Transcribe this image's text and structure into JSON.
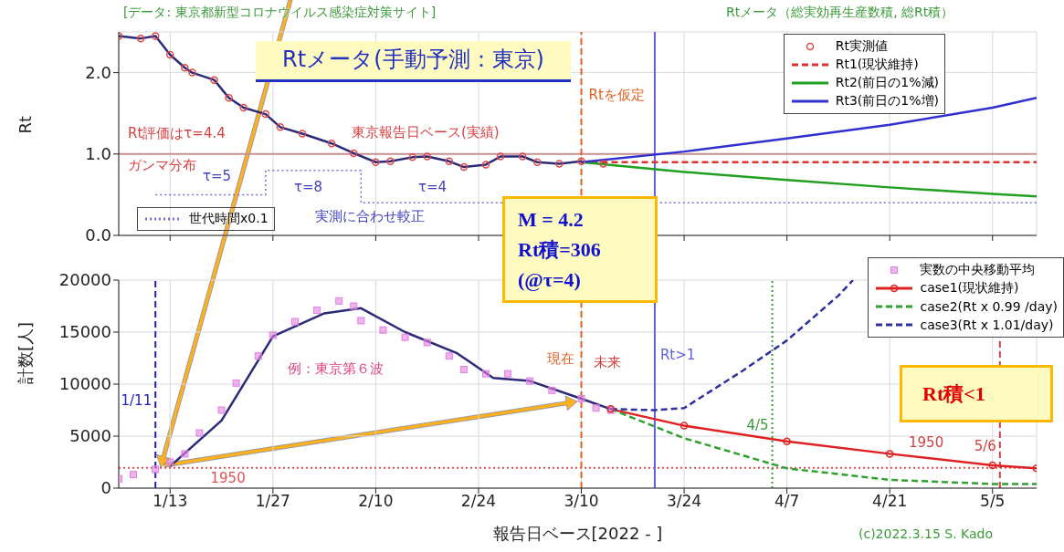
{
  "chart_data": [
    {
      "type": "line",
      "title": "Rtメータ(手動予測：東京)",
      "ylabel": "Rt",
      "xlim": [
        "2022-01-06",
        "2022-05-11"
      ],
      "xticks": [
        {
          "value": "2022-01-13",
          "label": null
        },
        {
          "value": "2022-01-27",
          "label": null
        },
        {
          "value": "2022-02-10",
          "label": null
        },
        {
          "value": "2022-02-24",
          "label": null
        },
        {
          "value": "2022-03-10",
          "label": null
        },
        {
          "value": "2022-03-24",
          "label": null
        },
        {
          "value": "2022-04-07",
          "label": null
        },
        {
          "value": "2022-04-21",
          "label": null
        },
        {
          "value": "2022-05-05",
          "label": null
        }
      ],
      "ylim": [
        0,
        2.5
      ],
      "yticks": [
        {
          "value": 0,
          "label": "0.0"
        },
        {
          "value": 1,
          "label": "1.0"
        },
        {
          "value": 2,
          "label": "2.0"
        }
      ],
      "tick_labels": "y",
      "grid": true,
      "legend": "top right",
      "annotations": [
        "[データ: 東京都新型コロナウイルス感染症対策サイト]",
        "Rtメータ（総実効再生産数積, 総Rt積）",
        "Rt評価はτ=4.4",
        "ガンマ分布",
        "東京報告日ベース(実績)",
        "τ=5",
        "τ=8",
        "τ=4",
        "実測に合わせ較正"
      ],
      "ref_lines": [
        {
          "axis": "y",
          "value": 1,
          "color": "#c89090",
          "line_style": "solid"
        },
        {
          "axis": "x",
          "value": "2022-03-10",
          "label": "Rtを仮定",
          "color": "#e06020",
          "line_style": "dashed"
        },
        {
          "axis": "x",
          "value": "2022-03-20",
          "color": "#6060d8",
          "line_style": "solid"
        }
      ],
      "series": [
        {
          "type": "line",
          "color": "#2a2a78",
          "marker": "none",
          "line_style": "solid",
          "x": [
            "2022-01-06",
            "2022-01-09",
            "2022-01-11",
            "2022-01-13",
            "2022-01-15",
            "2022-01-16",
            "2022-01-19",
            "2022-01-21",
            "2022-01-23",
            "2022-01-26",
            "2022-01-28",
            "2022-01-31",
            "2022-02-04",
            "2022-02-07",
            "2022-02-10",
            "2022-02-12",
            "2022-02-15",
            "2022-02-17",
            "2022-02-20",
            "2022-02-22",
            "2022-02-25",
            "2022-02-27",
            "2022-03-02",
            "2022-03-04",
            "2022-03-07",
            "2022-03-10"
          ],
          "values": [
            2.45,
            2.42,
            2.45,
            2.22,
            2.06,
            2.0,
            1.91,
            1.69,
            1.57,
            1.49,
            1.33,
            1.25,
            1.13,
            1.01,
            0.9,
            0.91,
            0.96,
            0.97,
            0.91,
            0.84,
            0.87,
            0.97,
            0.97,
            0.9,
            0.88,
            0.91
          ]
        },
        {
          "type": "scatter",
          "name": "Rt実測値",
          "color": "#e04848",
          "marker": "circle",
          "x": [
            "2022-01-06",
            "2022-01-09",
            "2022-01-11",
            "2022-01-13",
            "2022-01-15",
            "2022-01-16",
            "2022-01-19",
            "2022-01-21",
            "2022-01-23",
            "2022-01-26",
            "2022-01-28",
            "2022-01-31",
            "2022-02-04",
            "2022-02-07",
            "2022-02-10",
            "2022-02-12",
            "2022-02-15",
            "2022-02-17",
            "2022-02-20",
            "2022-02-22",
            "2022-02-25",
            "2022-02-27",
            "2022-03-02",
            "2022-03-04",
            "2022-03-07",
            "2022-03-10",
            "2022-03-13"
          ],
          "values": [
            2.45,
            2.42,
            2.45,
            2.22,
            2.06,
            2.0,
            1.91,
            1.69,
            1.57,
            1.49,
            1.33,
            1.25,
            1.13,
            1.01,
            0.9,
            0.91,
            0.96,
            0.97,
            0.91,
            0.84,
            0.87,
            0.97,
            0.97,
            0.9,
            0.88,
            0.91,
            0.88
          ]
        },
        {
          "type": "line",
          "name": "Rt1(現状維持)",
          "color": "#e03030",
          "marker": "none",
          "line_style": "dashed",
          "x": [
            "2022-03-10",
            "2022-05-11"
          ],
          "values": [
            0.9,
            0.9
          ]
        },
        {
          "type": "line",
          "name": "Rt2(前日の1%減)",
          "color": "#20a020",
          "marker": "none",
          "line_style": "solid",
          "x": [
            "2022-03-10",
            "2022-03-24",
            "2022-04-07",
            "2022-04-21",
            "2022-05-05",
            "2022-05-11"
          ],
          "values": [
            0.9,
            0.78,
            0.68,
            0.59,
            0.51,
            0.48
          ]
        },
        {
          "type": "line",
          "name": "Rt3(前日の1%増)",
          "color": "#3030d0",
          "marker": "none",
          "line_style": "solid",
          "x": [
            "2022-03-10",
            "2022-03-24",
            "2022-04-07",
            "2022-04-21",
            "2022-05-05",
            "2022-05-11"
          ],
          "values": [
            0.9,
            1.03,
            1.19,
            1.36,
            1.57,
            1.69
          ]
        },
        {
          "type": "step",
          "name": "世代時間x0.1",
          "color": "#7070e0",
          "marker": "none",
          "line_style": "dotted",
          "x": [
            "2022-01-11",
            "2022-01-26",
            "2022-02-08",
            "2022-05-11"
          ],
          "values": [
            0.5,
            0.8,
            0.4,
            0.4
          ]
        }
      ]
    },
    {
      "type": "line",
      "xlabel": "報告日ベース[2022 - ]",
      "ylabel": "計数[人]",
      "xlim": [
        "2022-01-06",
        "2022-05-11"
      ],
      "xticks": [
        {
          "value": "2022-01-13",
          "label": "1/13"
        },
        {
          "value": "2022-01-27",
          "label": "1/27"
        },
        {
          "value": "2022-02-10",
          "label": "2/10"
        },
        {
          "value": "2022-02-24",
          "label": "2/24"
        },
        {
          "value": "2022-03-10",
          "label": "3/10"
        },
        {
          "value": "2022-03-24",
          "label": "3/24"
        },
        {
          "value": "2022-04-07",
          "label": "4/7"
        },
        {
          "value": "2022-04-21",
          "label": "4/21"
        },
        {
          "value": "2022-05-05",
          "label": "5/5"
        }
      ],
      "ylim": [
        0,
        20000
      ],
      "yticks": [
        0,
        5000,
        10000,
        15000,
        20000
      ],
      "grid": true,
      "legend": "top right",
      "annotations": [
        "M = 4.2\nRt積=306\n(@τ=4)",
        "例：東京第６波",
        "1950",
        "未来",
        "Rt積<1",
        "(c)2022.3.15 S. Kado"
      ],
      "ref_lines": [
        {
          "axis": "y",
          "value": 1950,
          "label": "1950",
          "color": "#e05050",
          "line_style": "dotted"
        },
        {
          "axis": "x",
          "value": "2022-03-10",
          "label": "現在",
          "color": "#e06020",
          "line_style": "dashed"
        },
        {
          "axis": "x",
          "value": "2022-03-20",
          "label": "Rt>1",
          "color": "#6060d8",
          "line_style": "solid"
        },
        {
          "axis": "x",
          "value": "2022-01-11",
          "label": "1/11",
          "color": "#2020c0",
          "line_style": "dashed"
        },
        {
          "axis": "x",
          "value": "2022-04-05",
          "label": "4/5",
          "color": "#3a9a3a",
          "line_style": "dotted"
        },
        {
          "axis": "x",
          "value": "2022-05-06",
          "label": "5/6",
          "color": "#d04040",
          "line_style": "dashed"
        }
      ],
      "series": [
        {
          "type": "scatter",
          "name": "実数の中央移動平均",
          "color": "#e080e0",
          "marker": "square",
          "x": [
            "2022-01-06",
            "2022-01-08",
            "2022-01-11",
            "2022-01-13",
            "2022-01-15",
            "2022-01-17",
            "2022-01-20",
            "2022-01-22",
            "2022-01-25",
            "2022-01-27",
            "2022-01-30",
            "2022-02-02",
            "2022-02-05",
            "2022-02-07",
            "2022-02-08",
            "2022-02-11",
            "2022-02-14",
            "2022-02-17",
            "2022-02-20",
            "2022-02-22",
            "2022-02-25",
            "2022-02-28",
            "2022-03-03",
            "2022-03-06",
            "2022-03-10",
            "2022-03-12",
            "2022-03-14"
          ],
          "values": [
            900,
            1300,
            1800,
            2500,
            3300,
            5300,
            7500,
            10100,
            12700,
            14700,
            16000,
            17100,
            18000,
            17500,
            16100,
            15200,
            14500,
            14000,
            12700,
            11400,
            11000,
            11000,
            10300,
            9400,
            8600,
            7700,
            7500
          ]
        },
        {
          "type": "line",
          "color": "#2a2a78",
          "marker": "none",
          "line_style": "solid",
          "x": [
            "2022-01-13",
            "2022-01-20",
            "2022-01-27",
            "2022-02-03",
            "2022-02-08",
            "2022-02-14",
            "2022-02-21",
            "2022-02-26",
            "2022-03-03",
            "2022-03-10",
            "2022-03-14"
          ],
          "values": [
            2100,
            6500,
            14600,
            16800,
            17300,
            15000,
            13000,
            10600,
            10300,
            8600,
            7600
          ]
        },
        {
          "type": "line",
          "name": "case1(現状維持)",
          "color": "#e02020",
          "marker": "circle",
          "line_style": "solid",
          "x": [
            "2022-03-14",
            "2022-03-24",
            "2022-04-07",
            "2022-04-21",
            "2022-05-05",
            "2022-05-11"
          ],
          "values": [
            7600,
            6000,
            4500,
            3300,
            2200,
            1900
          ]
        },
        {
          "type": "line",
          "name": "case2(Rt  x 0.99 /day)",
          "color": "#30a030",
          "marker": "none",
          "line_style": "dashed",
          "x": [
            "2022-03-14",
            "2022-03-24",
            "2022-04-07",
            "2022-04-21",
            "2022-05-05",
            "2022-05-11"
          ],
          "values": [
            7600,
            4800,
            1900,
            800,
            400,
            400
          ]
        },
        {
          "type": "line",
          "name": "case3(Rt x 1.01/day)",
          "color": "#3030a0",
          "marker": "none",
          "line_style": "dashed",
          "x": [
            "2022-03-14",
            "2022-03-20",
            "2022-03-24",
            "2022-04-01",
            "2022-04-07",
            "2022-04-14",
            "2022-04-16"
          ],
          "values": [
            7600,
            7500,
            7700,
            11300,
            14200,
            18500,
            20000
          ]
        }
      ]
    }
  ]
}
